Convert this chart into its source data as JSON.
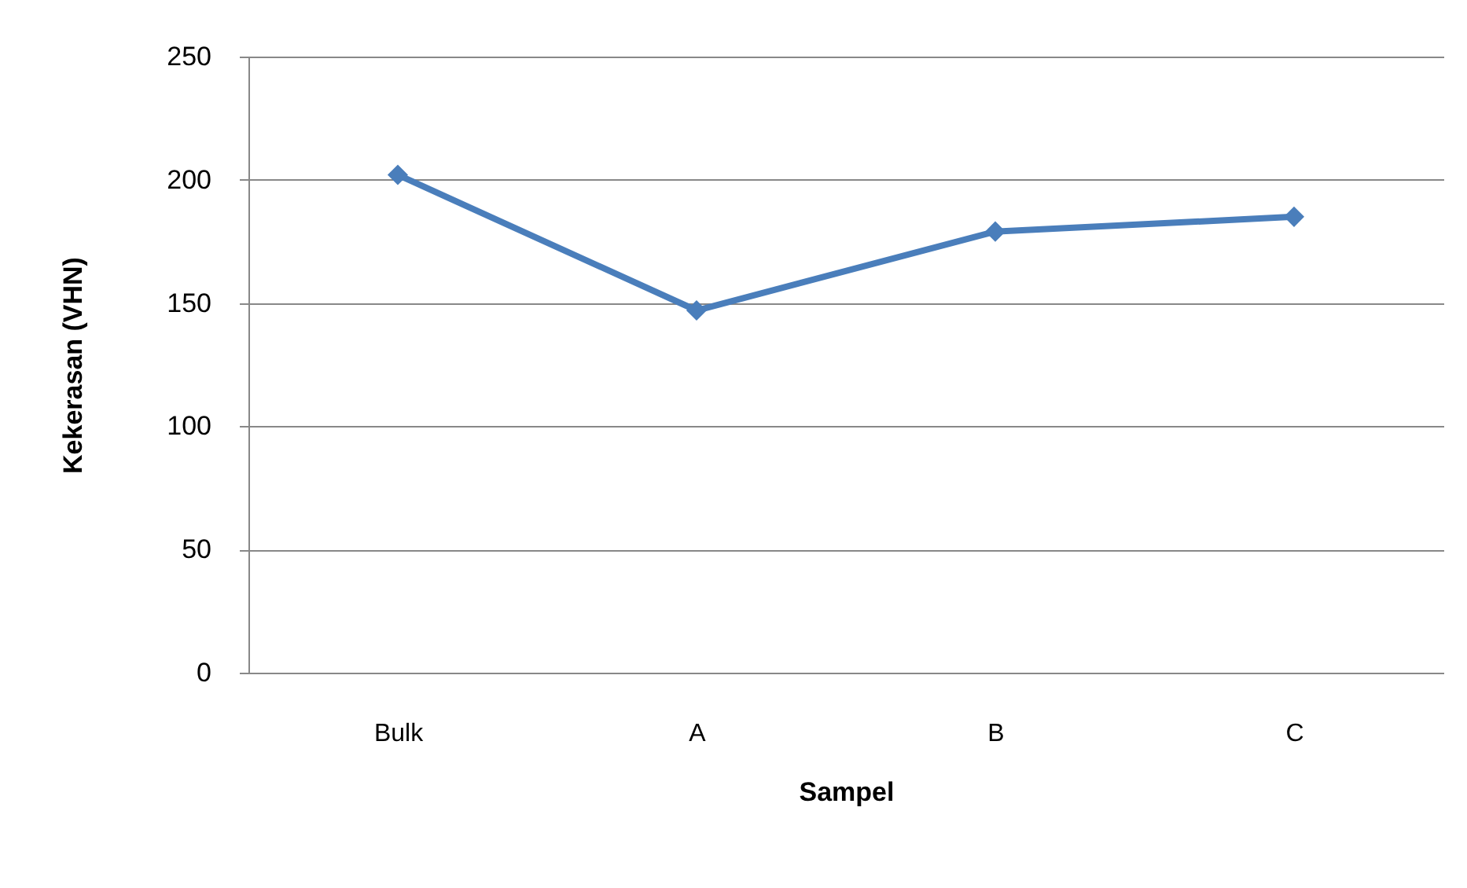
{
  "chart_data": {
    "type": "line",
    "xlabel": "Sampel",
    "ylabel": "Kekerasan (VHN)",
    "categories": [
      "Bulk",
      "A",
      "B",
      "C"
    ],
    "series": [
      {
        "color": "#4a7ebb",
        "values": [
          202,
          147,
          179,
          185
        ]
      }
    ],
    "ylim": [
      0,
      250
    ],
    "yticks": [
      0,
      50,
      100,
      150,
      200,
      250
    ],
    "grid": "y",
    "marker": "diamond",
    "line_style": "solid"
  }
}
